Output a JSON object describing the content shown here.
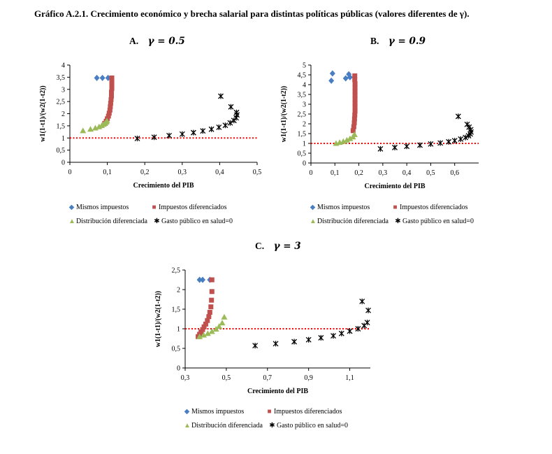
{
  "figure_title": "Gráfico A.2.1. Crecimiento económico y brecha salarial para distintas políticas públicas (valores diferentes de γ).",
  "colors": {
    "mismos": "#4a7ec2",
    "diferenciados": "#c0504d",
    "distribucion": "#9bbb59",
    "gasto": "#000000",
    "reference_line": "#ff0000"
  },
  "chart_data": [
    {
      "type": "scatter",
      "panel_letter": "A.",
      "gamma_label": "γ = 0.5",
      "xlabel": "Crecimiento del PIB",
      "ylabel": "w1(1-t1)/(w2(1-t2))",
      "xlim": [
        0,
        0.5
      ],
      "ylim": [
        0,
        4
      ],
      "x_ticks": [
        "0",
        "0,1",
        "0,2",
        "0,3",
        "0,4",
        "0,5"
      ],
      "x_tick_values": [
        0,
        0.1,
        0.2,
        0.3,
        0.4,
        0.5
      ],
      "y_ticks": [
        "0",
        "0,5",
        "1",
        "1,5",
        "2",
        "2,5",
        "3",
        "3,5",
        "4"
      ],
      "y_tick_values": [
        0,
        0.5,
        1,
        1.5,
        2,
        2.5,
        3,
        3.5,
        4
      ],
      "reference_y": 1,
      "series": [
        {
          "name": "Mismos impuestos",
          "marker": "diamond",
          "points": [
            [
              0.072,
              3.47
            ],
            [
              0.087,
              3.47
            ],
            [
              0.102,
              3.47
            ]
          ]
        },
        {
          "name": "Impuestos diferenciados",
          "marker": "square",
          "points": [
            [
              0.112,
              3.47
            ],
            [
              0.112,
              3.33
            ],
            [
              0.112,
              3.18
            ],
            [
              0.112,
              3.03
            ],
            [
              0.111,
              2.88
            ],
            [
              0.111,
              2.73
            ],
            [
              0.11,
              2.58
            ],
            [
              0.109,
              2.43
            ],
            [
              0.108,
              2.29
            ],
            [
              0.107,
              2.15
            ],
            [
              0.105,
              2.02
            ],
            [
              0.103,
              1.9
            ],
            [
              0.1,
              1.79
            ],
            [
              0.097,
              1.69
            ],
            [
              0.093,
              1.6
            ]
          ]
        },
        {
          "name": "Distribución diferenciada",
          "marker": "triangle",
          "points": [
            [
              0.035,
              1.3
            ],
            [
              0.055,
              1.36
            ],
            [
              0.068,
              1.41
            ],
            [
              0.078,
              1.46
            ],
            [
              0.085,
              1.51
            ],
            [
              0.09,
              1.56
            ],
            [
              0.094,
              1.6
            ],
            [
              0.097,
              1.65
            ],
            [
              0.099,
              1.7
            ]
          ]
        },
        {
          "name": "Gasto público en salud=0",
          "marker": "star",
          "points": [
            [
              0.18,
              0.98
            ],
            [
              0.225,
              1.03
            ],
            [
              0.265,
              1.1
            ],
            [
              0.3,
              1.16
            ],
            [
              0.33,
              1.22
            ],
            [
              0.355,
              1.29
            ],
            [
              0.378,
              1.36
            ],
            [
              0.398,
              1.44
            ],
            [
              0.415,
              1.52
            ],
            [
              0.428,
              1.62
            ],
            [
              0.438,
              1.72
            ],
            [
              0.444,
              1.83
            ],
            [
              0.446,
              1.95
            ],
            [
              0.445,
              2.05
            ],
            [
              0.43,
              2.28
            ],
            [
              0.403,
              2.72
            ]
          ]
        }
      ]
    },
    {
      "type": "scatter",
      "panel_letter": "B.",
      "gamma_label": "γ = 0.9",
      "xlabel": "Crecimiento del PIB",
      "ylabel": "w1(1-t1)/(w2(1-t2))",
      "xlim": [
        0,
        0.7
      ],
      "ylim": [
        0,
        5
      ],
      "x_ticks": [
        "0",
        "0,1",
        "0,2",
        "0,3",
        "0,4",
        "0,5",
        "0,6"
      ],
      "x_tick_values": [
        0,
        0.1,
        0.2,
        0.3,
        0.4,
        0.5,
        0.6
      ],
      "y_ticks": [
        "0",
        "0,5",
        "1",
        "1,5",
        "2",
        "2,5",
        "3",
        "3,5",
        "4",
        "4,5",
        "5"
      ],
      "y_tick_values": [
        0,
        0.5,
        1,
        1.5,
        2,
        2.5,
        3,
        3.5,
        4,
        4.5,
        5
      ],
      "reference_y": 1,
      "series": [
        {
          "name": "Mismos impuestos",
          "marker": "diamond",
          "points": [
            [
              0.085,
              4.2
            ],
            [
              0.09,
              4.57
            ],
            [
              0.145,
              4.32
            ],
            [
              0.158,
              4.53
            ],
            [
              0.163,
              4.38
            ]
          ]
        },
        {
          "name": "Impuestos diferenciados",
          "marker": "square",
          "points": [
            [
              0.183,
              4.45
            ],
            [
              0.183,
              4.25
            ],
            [
              0.184,
              4.05
            ],
            [
              0.184,
              3.85
            ],
            [
              0.184,
              3.65
            ],
            [
              0.184,
              3.45
            ],
            [
              0.184,
              3.25
            ],
            [
              0.184,
              3.05
            ],
            [
              0.184,
              2.85
            ],
            [
              0.184,
              2.65
            ],
            [
              0.183,
              2.45
            ],
            [
              0.182,
              2.25
            ],
            [
              0.181,
              2.05
            ],
            [
              0.179,
              1.85
            ],
            [
              0.176,
              1.65
            ]
          ]
        },
        {
          "name": "Distribución diferenciada",
          "marker": "triangle",
          "points": [
            [
              0.105,
              1.0
            ],
            [
              0.12,
              1.05
            ],
            [
              0.135,
              1.1
            ],
            [
              0.15,
              1.17
            ],
            [
              0.163,
              1.24
            ],
            [
              0.175,
              1.33
            ],
            [
              0.182,
              1.45
            ]
          ]
        },
        {
          "name": "Gasto público en salud=0",
          "marker": "star",
          "points": [
            [
              0.29,
              0.72
            ],
            [
              0.35,
              0.79
            ],
            [
              0.4,
              0.85
            ],
            [
              0.455,
              0.91
            ],
            [
              0.5,
              0.97
            ],
            [
              0.54,
              1.02
            ],
            [
              0.575,
              1.08
            ],
            [
              0.6,
              1.14
            ],
            [
              0.625,
              1.22
            ],
            [
              0.645,
              1.3
            ],
            [
              0.658,
              1.39
            ],
            [
              0.665,
              1.48
            ],
            [
              0.668,
              1.58
            ],
            [
              0.667,
              1.7
            ],
            [
              0.66,
              1.83
            ],
            [
              0.652,
              1.97
            ],
            [
              0.615,
              2.38
            ]
          ]
        }
      ]
    },
    {
      "type": "scatter",
      "panel_letter": "C.",
      "gamma_label": "γ = 3",
      "xlabel": "Crecimiento del PIB",
      "ylabel": "w1(1-t1)/(w2(1-t2))",
      "xlim": [
        0.3,
        1.2
      ],
      "ylim": [
        0,
        2.5
      ],
      "x_ticks": [
        "0,3",
        "0,5",
        "0,7",
        "0,9",
        "1,1"
      ],
      "x_tick_values": [
        0.3,
        0.5,
        0.7,
        0.9,
        1.1
      ],
      "y_ticks": [
        "0",
        "0,5",
        "1",
        "1,5",
        "2",
        "2,5"
      ],
      "y_tick_values": [
        0,
        0.5,
        1,
        1.5,
        2,
        2.5
      ],
      "reference_y": 1,
      "series": [
        {
          "name": "Mismos impuestos",
          "marker": "diamond",
          "points": [
            [
              0.37,
              2.25
            ],
            [
              0.385,
              2.25
            ],
            [
              0.42,
              2.25
            ]
          ]
        },
        {
          "name": "Impuestos diferenciados",
          "marker": "square",
          "points": [
            [
              0.43,
              2.25
            ],
            [
              0.43,
              1.95
            ],
            [
              0.428,
              1.73
            ],
            [
              0.425,
              1.56
            ],
            [
              0.42,
              1.42
            ],
            [
              0.415,
              1.31
            ],
            [
              0.408,
              1.21
            ],
            [
              0.4,
              1.12
            ],
            [
              0.392,
              1.05
            ],
            [
              0.385,
              0.98
            ],
            [
              0.377,
              0.92
            ],
            [
              0.37,
              0.86
            ],
            [
              0.363,
              0.8
            ]
          ]
        },
        {
          "name": "Distribución diferenciada",
          "marker": "triangle",
          "points": [
            [
              0.37,
              0.8
            ],
            [
              0.39,
              0.84
            ],
            [
              0.41,
              0.88
            ],
            [
              0.43,
              0.93
            ],
            [
              0.45,
              0.99
            ],
            [
              0.465,
              1.06
            ],
            [
              0.48,
              1.15
            ],
            [
              0.49,
              1.3
            ]
          ]
        },
        {
          "name": "Gasto público en salud=0",
          "marker": "star",
          "points": [
            [
              0.64,
              0.57
            ],
            [
              0.74,
              0.62
            ],
            [
              0.83,
              0.67
            ],
            [
              0.9,
              0.72
            ],
            [
              0.96,
              0.77
            ],
            [
              1.02,
              0.82
            ],
            [
              1.06,
              0.88
            ],
            [
              1.1,
              0.94
            ],
            [
              1.14,
              1.0
            ],
            [
              1.17,
              1.08
            ],
            [
              1.185,
              1.16
            ],
            [
              1.19,
              1.47
            ],
            [
              1.16,
              1.7
            ]
          ]
        }
      ]
    }
  ]
}
